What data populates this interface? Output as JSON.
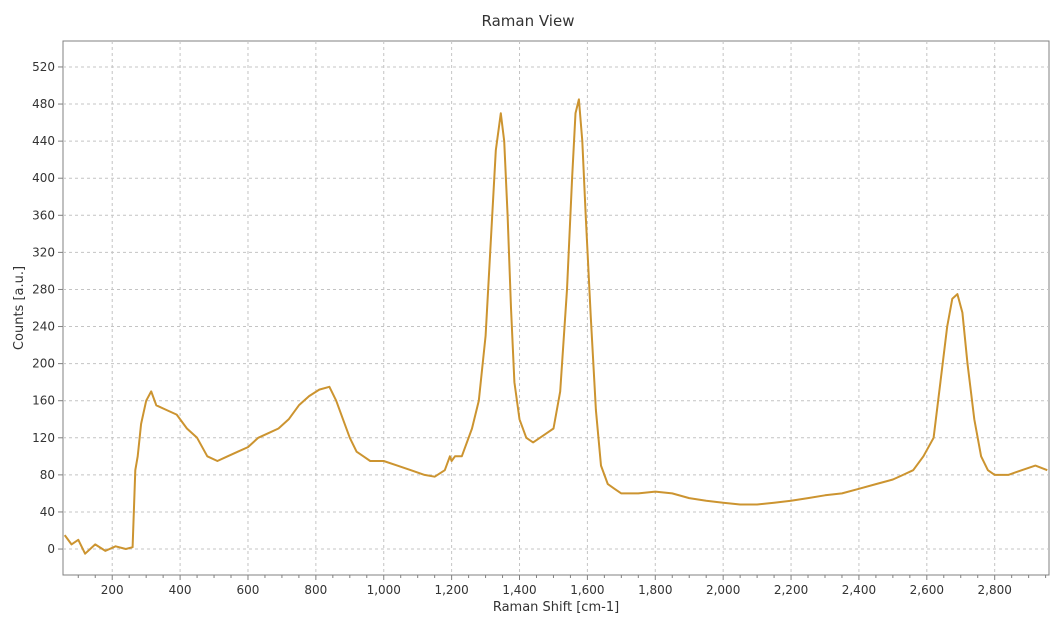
{
  "chart_data": {
    "type": "line",
    "title": "Raman View",
    "xlabel": "Raman Shift [cm-1]",
    "ylabel": "Counts [a.u.]",
    "xlim": [
      55,
      2960
    ],
    "ylim": [
      -28,
      548
    ],
    "x_ticks": [
      200,
      400,
      600,
      800,
      1000,
      1200,
      1400,
      1600,
      1800,
      2000,
      2200,
      2400,
      2600,
      2800
    ],
    "x_tick_labels": [
      "200",
      "400",
      "600",
      "800",
      "1,000",
      "1,200",
      "1,400",
      "1,600",
      "1,800",
      "2,000",
      "2,200",
      "2,400",
      "2,600",
      "2,800"
    ],
    "y_ticks": [
      0,
      40,
      80,
      120,
      160,
      200,
      240,
      280,
      320,
      360,
      400,
      440,
      480,
      520
    ],
    "y_tick_labels": [
      "0",
      "40",
      "80",
      "120",
      "160",
      "200",
      "240",
      "280",
      "320",
      "360",
      "400",
      "440",
      "480",
      "520"
    ],
    "grid": true,
    "line_color": "#cc9430",
    "series": [
      {
        "x": [
          60,
          80,
          100,
          120,
          150,
          180,
          210,
          240,
          260,
          268,
          275,
          285,
          300,
          315,
          330,
          360,
          390,
          420,
          450,
          480,
          510,
          540,
          570,
          600,
          630,
          660,
          690,
          720,
          750,
          780,
          810,
          840,
          860,
          880,
          900,
          920,
          940,
          960,
          1000,
          1040,
          1080,
          1120,
          1150,
          1180,
          1195,
          1200,
          1210,
          1230,
          1260,
          1280,
          1300,
          1315,
          1330,
          1345,
          1355,
          1365,
          1375,
          1385,
          1400,
          1420,
          1440,
          1460,
          1480,
          1500,
          1520,
          1540,
          1555,
          1565,
          1575,
          1585,
          1595,
          1610,
          1625,
          1640,
          1660,
          1680,
          1700,
          1750,
          1800,
          1850,
          1900,
          1950,
          2000,
          2050,
          2100,
          2150,
          2200,
          2250,
          2300,
          2350,
          2400,
          2450,
          2500,
          2530,
          2560,
          2590,
          2620,
          2640,
          2660,
          2675,
          2690,
          2705,
          2720,
          2740,
          2760,
          2780,
          2800,
          2840,
          2880,
          2920,
          2955
        ],
        "y": [
          15,
          5,
          10,
          -5,
          5,
          -2,
          3,
          0,
          2,
          85,
          100,
          135,
          160,
          170,
          155,
          150,
          145,
          130,
          120,
          100,
          95,
          100,
          105,
          110,
          120,
          125,
          130,
          140,
          155,
          165,
          172,
          175,
          160,
          140,
          120,
          105,
          100,
          95,
          95,
          90,
          85,
          80,
          78,
          85,
          100,
          95,
          100,
          100,
          130,
          160,
          230,
          330,
          430,
          470,
          440,
          360,
          260,
          180,
          140,
          120,
          115,
          120,
          125,
          130,
          170,
          280,
          400,
          470,
          485,
          440,
          360,
          250,
          150,
          90,
          70,
          65,
          60,
          60,
          62,
          60,
          55,
          52,
          50,
          48,
          48,
          50,
          52,
          55,
          58,
          60,
          65,
          70,
          75,
          80,
          85,
          100,
          120,
          180,
          240,
          270,
          275,
          255,
          200,
          140,
          100,
          85,
          80,
          80,
          85,
          90,
          85
        ]
      }
    ]
  }
}
